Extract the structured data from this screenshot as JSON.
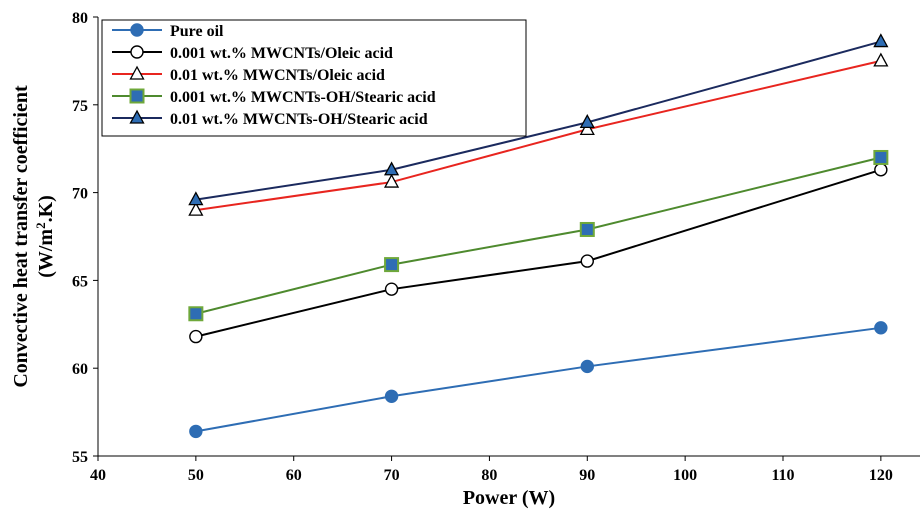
{
  "chart_data": {
    "type": "line",
    "xlabel": "Power (W)",
    "ylabel_line1": "Convective heat transfer coefficient",
    "ylabel_line2_prefix": "(W/m",
    "ylabel_line2_sup": "2",
    "ylabel_line2_suffix": ".K)",
    "xlim": [
      40,
      124
    ],
    "ylim": [
      55,
      80
    ],
    "x_ticks": [
      40,
      50,
      60,
      70,
      80,
      90,
      100,
      110,
      120
    ],
    "y_ticks": [
      55,
      60,
      65,
      70,
      75,
      80
    ],
    "x": [
      50,
      70,
      90,
      120
    ],
    "series": [
      {
        "name": "Pure oil",
        "values": [
          56.4,
          58.4,
          60.1,
          62.3
        ],
        "line_color": "#2E6DB4",
        "marker": "circle",
        "marker_fill": "#2E6DB4",
        "marker_stroke": "#2E6DB4"
      },
      {
        "name": "0.001 wt.% MWCNTs/Oleic acid",
        "values": [
          61.8,
          64.5,
          66.1,
          71.3
        ],
        "line_color": "#000000",
        "marker": "circle",
        "marker_fill": "#ffffff",
        "marker_stroke": "#000000"
      },
      {
        "name": "0.01 wt.% MWCNTs/Oleic acid",
        "values": [
          69.0,
          70.6,
          73.6,
          77.5
        ],
        "line_color": "#E8251F",
        "marker": "triangle",
        "marker_fill": "#ffffff",
        "marker_stroke": "#000000"
      },
      {
        "name": "0.001 wt.% MWCNTs-OH/Stearic acid",
        "values": [
          63.1,
          65.9,
          67.9,
          72.0
        ],
        "line_color": "#4E8A2E",
        "marker": "square",
        "marker_fill": "#2E6DB4",
        "marker_stroke": "#6FA83A"
      },
      {
        "name": "0.01 wt.% MWCNTs-OH/Stearic acid",
        "values": [
          69.6,
          71.3,
          74.0,
          78.6
        ],
        "line_color": "#1B2A5E",
        "marker": "triangle",
        "marker_fill": "#2E6DB4",
        "marker_stroke": "#000000"
      }
    ],
    "legend_position": "top-left",
    "grid": false
  }
}
